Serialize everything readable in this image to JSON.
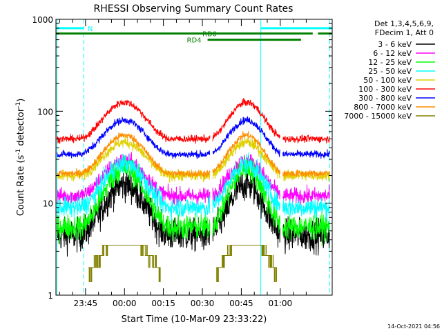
{
  "chart_data": {
    "type": "line",
    "title": "RHESSI Observing Summary Count Rates",
    "xlabel": "Start Time (10-Mar-09 23:33:22)",
    "ylabel_main": "Count Rate (s",
    "ylabel_sup1": "-1",
    "ylabel_mid": " detector",
    "ylabel_sup2": "-1",
    "ylabel_end": ")",
    "yscale": "log",
    "ylim": [
      1,
      1000
    ],
    "xlim_minutes": [
      -26.4,
      80.0
    ],
    "x_ticks": [
      {
        "label": "23:45",
        "minute": -15
      },
      {
        "label": "00:00",
        "minute": 0
      },
      {
        "label": "00:15",
        "minute": 15
      },
      {
        "label": "00:30",
        "minute": 30
      },
      {
        "label": "00:45",
        "minute": 45
      },
      {
        "label": "01:00",
        "minute": 60
      }
    ],
    "y_ticks": [
      {
        "label": "1",
        "value": 1
      },
      {
        "label": "10",
        "value": 10
      },
      {
        "label": "100",
        "value": 100
      },
      {
        "label": "1000",
        "value": 1000
      }
    ],
    "legend_header": [
      "Det 1,3,4,5,6,9,",
      "FDecim 1, Att 0"
    ],
    "legend_position": "right",
    "series": [
      {
        "name": "3 - 6 keV",
        "color": "#000000",
        "base": 4.5,
        "peak": 16,
        "noise": 0.09
      },
      {
        "name": "6 - 12 keV",
        "color": "#ff00ff",
        "base": 12,
        "peak": 29,
        "noise": 0.045
      },
      {
        "name": "12 - 25 keV",
        "color": "#00ff00",
        "base": 5.5,
        "peak": 24,
        "noise": 0.07
      },
      {
        "name": "25 - 50 keV",
        "color": "#00ffff",
        "base": 9,
        "peak": 27,
        "noise": 0.055
      },
      {
        "name": "50 - 100 keV",
        "color": "#e0d000",
        "base": 20,
        "peak": 46,
        "noise": 0.03
      },
      {
        "name": "100 - 300 keV",
        "color": "#ff0000",
        "base": 50,
        "peak": 125,
        "noise": 0.02
      },
      {
        "name": "300 - 800 keV",
        "color": "#0000ff",
        "base": 34,
        "peak": 80,
        "noise": 0.02
      },
      {
        "name": "800 - 7000 keV",
        "color": "#ff8c00",
        "base": 21,
        "peak": 55,
        "noise": 0.02
      },
      {
        "name": "7000 - 15000 keV",
        "color": "#808000",
        "base": 1.0,
        "peak": 3.5,
        "noise": 0.0
      }
    ],
    "orbit_humps": [
      {
        "center_minute": 0,
        "half_width_minute": 18
      },
      {
        "center_minute": 47,
        "half_width_minute": 15
      }
    ],
    "data_gap_minutes": [
      [
        33,
        34
      ],
      [
        60,
        61
      ]
    ],
    "flags": [
      {
        "label": "N",
        "color": "#00ffff",
        "value": 800,
        "segments": [
          [
            -26.4,
            -15.8
          ],
          [
            52.5,
            80
          ]
        ]
      },
      {
        "label": "RD0",
        "color": "#008000",
        "value": 700,
        "segments": [
          [
            -26.4,
            72.5
          ],
          [
            74.5,
            80
          ]
        ]
      },
      {
        "label": "RD4",
        "color": "#008000",
        "value": 600,
        "segments": [
          [
            32,
            68
          ]
        ]
      }
    ],
    "vertical_lines": [
      {
        "minute": -26.0,
        "style": "solid",
        "color": "#00ffff"
      },
      {
        "minute": -15.7,
        "style": "dashed",
        "color": "#00ffff"
      },
      {
        "minute": 52.5,
        "style": "solid",
        "color": "#00ffff"
      },
      {
        "minute": 79.0,
        "style": "dashed",
        "color": "#00ffff"
      }
    ]
  },
  "footer": {
    "timestamp": "14-Oct-2021 04:56"
  }
}
